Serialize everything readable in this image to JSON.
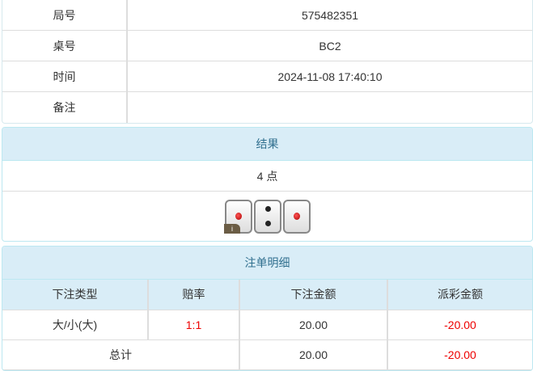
{
  "info": [
    {
      "label": "局号",
      "value": "575482351"
    },
    {
      "label": "桌号",
      "value": "BC2"
    },
    {
      "label": "时间",
      "value": "2024-11-08 17:40:10"
    },
    {
      "label": "备注",
      "value": ""
    }
  ],
  "result": {
    "title": "结果",
    "points": "4 点",
    "dice": [
      1,
      2,
      1
    ],
    "info_badge": "i"
  },
  "bets": {
    "title": "注单明细",
    "headers": [
      "下注类型",
      "赔率",
      "下注金额",
      "派彩金额"
    ],
    "rows": [
      {
        "type": "大/小(大)",
        "odds": "1:1",
        "amount": "20.00",
        "payout": "-20.00"
      }
    ],
    "total": {
      "label": "总计",
      "amount": "20.00",
      "payout": "-20.00"
    },
    "negative_color": "#e00000"
  }
}
